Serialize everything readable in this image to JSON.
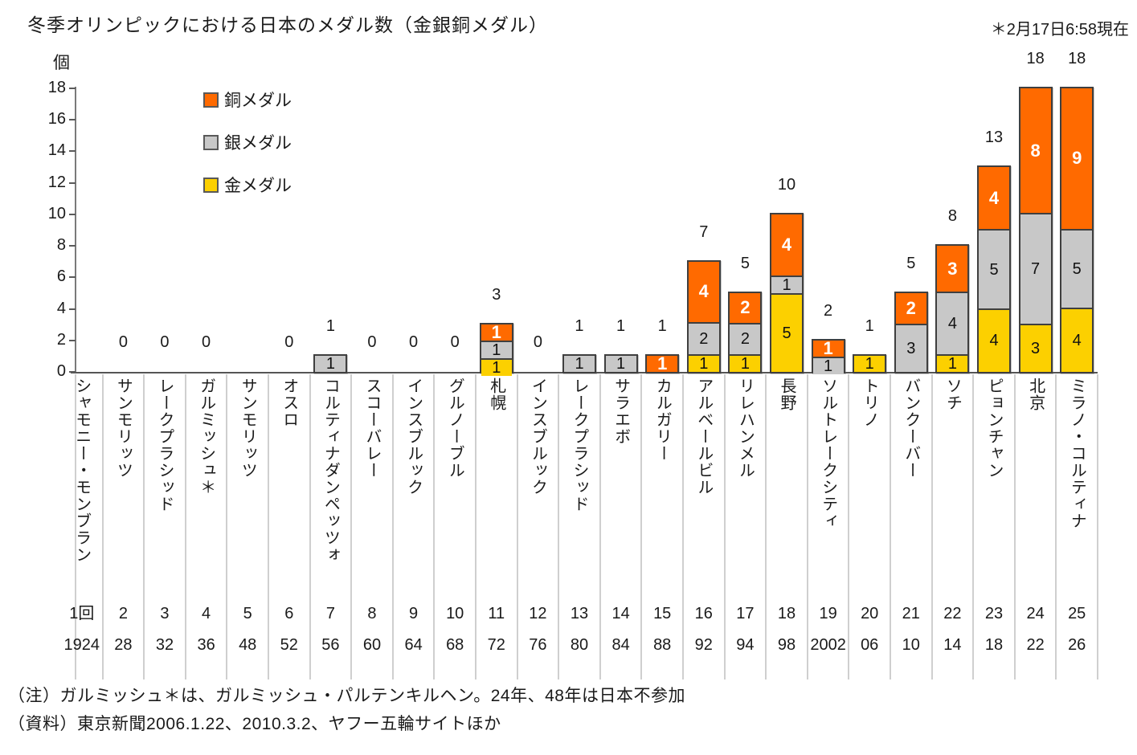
{
  "title": "冬季オリンピックにおける日本のメダル数（金銀銅メダル）",
  "timestamp_note": "＊2月17日6:58現在",
  "y_axis": {
    "unit": "個",
    "ticks": [
      0,
      2,
      4,
      6,
      8,
      10,
      12,
      14,
      16,
      18
    ],
    "max": 18
  },
  "legend": [
    {
      "label": "銅メダル",
      "color": "#FF6A00"
    },
    {
      "label": "銀メダル",
      "color": "#C8C8C8"
    },
    {
      "label": "金メダル",
      "color": "#FCD000"
    }
  ],
  "notes": [
    "（注）ガルミッシュ＊は、ガルミッシュ・パルテンキルヘン。24年、48年は日本不参加",
    "（資料）東京新聞2006.1.22、2010.3.2、ヤフー五輪サイトほか"
  ],
  "chart_data": {
    "type": "bar",
    "stacked": true,
    "title": "冬季オリンピックにおける日本のメダル数（金銀銅メダル）",
    "ylabel": "個",
    "ylim": [
      0,
      18
    ],
    "grid": false,
    "legend_position": "top-left-inside",
    "categories": [
      "シャモニー・モンブラン",
      "サンモリッツ",
      "レークプラシッド",
      "ガルミッシュ＊",
      "サンモリッツ",
      "オスロ",
      "コルティナダンペッツォ",
      "スコーバレー",
      "インスブルック",
      "グルノーブル",
      "札幌",
      "インスブルック",
      "レークプラシッド",
      "サラエボ",
      "カルガリー",
      "アルベールビル",
      "リレハンメル",
      "長野",
      "ソルトレークシティ",
      "トリノ",
      "バンクーバー",
      "ソチ",
      "ピョンチャン",
      "北京",
      "ミラノ・コルティナ"
    ],
    "edition_labels": [
      "1回",
      "2",
      "3",
      "4",
      "5",
      "6",
      "7",
      "8",
      "9",
      "10",
      "11",
      "12",
      "13",
      "14",
      "15",
      "16",
      "17",
      "18",
      "19",
      "20",
      "21",
      "22",
      "23",
      "24",
      "25"
    ],
    "year_labels": [
      "1924",
      "28",
      "32",
      "36",
      "48",
      "52",
      "56",
      "60",
      "64",
      "68",
      "72",
      "76",
      "80",
      "84",
      "88",
      "92",
      "94",
      "98",
      "2002",
      "06",
      "10",
      "14",
      "18",
      "22",
      "26"
    ],
    "series": [
      {
        "name": "金メダル",
        "key": "gold",
        "color": "#FCD000",
        "values": [
          null,
          0,
          0,
          0,
          null,
          0,
          0,
          0,
          0,
          0,
          1,
          0,
          0,
          0,
          0,
          1,
          1,
          5,
          0,
          1,
          0,
          1,
          4,
          3,
          4
        ]
      },
      {
        "name": "銀メダル",
        "key": "silver",
        "color": "#C8C8C8",
        "values": [
          null,
          0,
          0,
          0,
          null,
          0,
          1,
          0,
          0,
          0,
          1,
          0,
          1,
          1,
          0,
          2,
          2,
          1,
          1,
          0,
          3,
          4,
          5,
          7,
          5
        ]
      },
      {
        "name": "銅メダル",
        "key": "bronze",
        "color": "#FF6A00",
        "values": [
          null,
          0,
          0,
          0,
          null,
          0,
          0,
          0,
          0,
          0,
          1,
          0,
          0,
          0,
          1,
          4,
          2,
          4,
          1,
          0,
          2,
          3,
          4,
          8,
          9
        ]
      }
    ],
    "totals": [
      null,
      0,
      0,
      0,
      null,
      0,
      1,
      0,
      0,
      0,
      3,
      0,
      1,
      1,
      1,
      7,
      5,
      10,
      2,
      1,
      5,
      8,
      13,
      18,
      18
    ],
    "non_participation_note": "24年、48年は日本不参加"
  }
}
